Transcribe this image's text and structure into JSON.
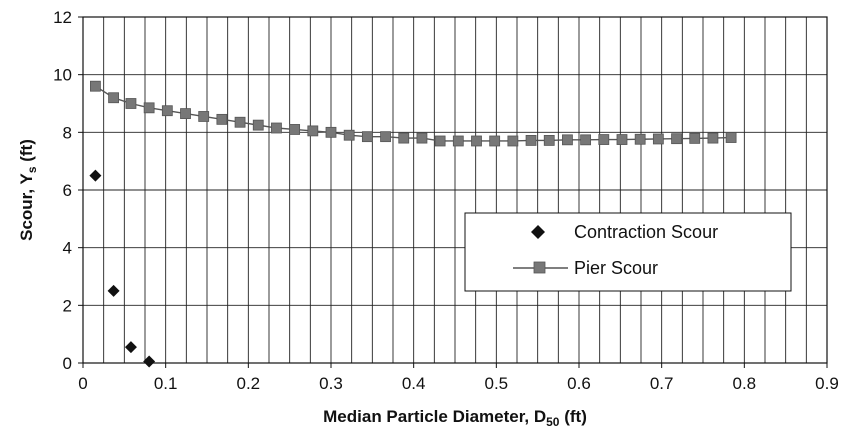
{
  "chart_data": {
    "type": "scatter",
    "xlabel": "Median Particle Diameter, D",
    "xlabel_sub": "50",
    "xlabel_suffix": " (ft)",
    "ylabel": "Scour, Y",
    "ylabel_sub": "s",
    "ylabel_suffix": " (ft)",
    "xlim": [
      0,
      0.9
    ],
    "ylim": [
      0,
      12
    ],
    "xticks": [
      "0",
      "0.1",
      "0.2",
      "0.3",
      "0.4",
      "0.5",
      "0.6",
      "0.7",
      "0.8",
      "0.9"
    ],
    "yticks": [
      "0",
      "2",
      "4",
      "6",
      "8",
      "10",
      "12"
    ],
    "grid": true,
    "legend_position": "middle-right",
    "series": [
      {
        "name": "Contraction Scour",
        "marker": "diamond",
        "line": false,
        "color": "#111111",
        "x": [
          0.015,
          0.037,
          0.058,
          0.08
        ],
        "y": [
          6.5,
          2.5,
          0.55,
          0.05
        ]
      },
      {
        "name": "Pier Scour",
        "marker": "square",
        "line": true,
        "color": "#555555",
        "x": [
          0.015,
          0.037,
          0.058,
          0.08,
          0.102,
          0.124,
          0.146,
          0.168,
          0.19,
          0.212,
          0.234,
          0.256,
          0.278,
          0.3,
          0.322,
          0.344,
          0.366,
          0.388,
          0.41,
          0.432,
          0.454,
          0.476,
          0.498,
          0.52,
          0.542,
          0.564,
          0.586,
          0.608,
          0.63,
          0.652,
          0.674,
          0.696,
          0.718,
          0.74,
          0.762,
          0.784
        ],
        "y": [
          9.6,
          9.2,
          9.0,
          8.85,
          8.75,
          8.65,
          8.55,
          8.45,
          8.35,
          8.25,
          8.15,
          8.1,
          8.05,
          8.0,
          7.9,
          7.85,
          7.85,
          7.8,
          7.8,
          7.7,
          7.7,
          7.7,
          7.7,
          7.7,
          7.72,
          7.72,
          7.74,
          7.74,
          7.75,
          7.75,
          7.76,
          7.77,
          7.78,
          7.79,
          7.8,
          7.82
        ]
      }
    ]
  }
}
